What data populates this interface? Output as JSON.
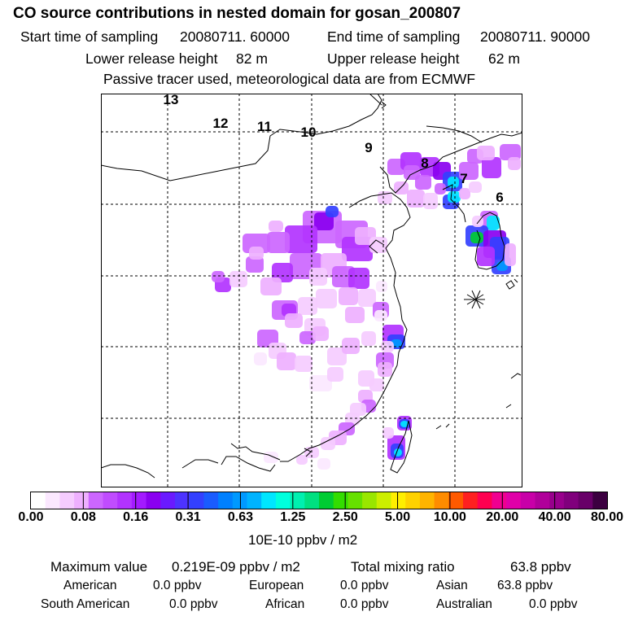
{
  "title": "CO  source contributions in nested domain for gosan_200807",
  "start_label": "Start time of sampling",
  "start_value": "20080711. 60000",
  "end_label": "End time of sampling",
  "end_value": "20080711. 90000",
  "lower_label": "Lower release height",
  "lower_value": "82 m",
  "upper_label": "Upper release height",
  "upper_value": "62 m",
  "note": "Passive tracer used, meteorological data are from ECMWF",
  "backtrack_labels": [
    "13",
    "12",
    "11",
    "10",
    "9",
    "8",
    "7",
    "6"
  ],
  "colorbar": {
    "colors": [
      "#ffffff",
      "#fbe8ff",
      "#f5ccff",
      "#eeb0ff",
      "#cc66ff",
      "#c04cff",
      "#b233ff",
      "#a31aff",
      "#8a00f0",
      "#6a1aff",
      "#4d33ff",
      "#3340ff",
      "#1a5cff",
      "#0080ff",
      "#0099ff",
      "#00b3ff",
      "#00e6ff",
      "#00ffdd",
      "#00f0b0",
      "#00e080",
      "#00cc33",
      "#33dd00",
      "#66e000",
      "#99e600",
      "#ccee00",
      "#ffee00",
      "#ffd200",
      "#ffb400",
      "#ff8c00",
      "#ff5a00",
      "#ff2020",
      "#ff0050",
      "#f00090",
      "#e000a8",
      "#c800a8",
      "#b0009a",
      "#98008c",
      "#80007c",
      "#680068",
      "#3c0040"
    ],
    "ticks": [
      "0.00",
      "0.08",
      "0.16",
      "0.31",
      "0.63",
      "1.25",
      "2.50",
      "5.00",
      "10.00",
      "20.00",
      "40.00",
      "80.00"
    ],
    "units": "10E-10 ppbv / m2"
  },
  "summary": {
    "max_label": "Maximum value",
    "max_value": "0.219E-09 ppbv / m2",
    "total_label": "Total mixing ratio",
    "total_value": "63.8 ppbv",
    "sources": [
      {
        "name": "American",
        "value": "0.0 ppbv"
      },
      {
        "name": "European",
        "value": "0.0 ppbv"
      },
      {
        "name": "Asian",
        "value": "63.8 ppbv"
      },
      {
        "name": "South American",
        "value": "0.0 ppbv"
      },
      {
        "name": "African",
        "value": "0.0 ppbv"
      },
      {
        "name": "Australian",
        "value": "0.0 ppbv"
      }
    ]
  }
}
